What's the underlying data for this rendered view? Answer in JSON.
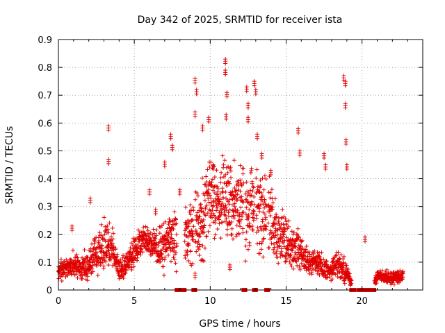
{
  "chart_data": {
    "type": "scatter",
    "title": "Day 342 of 2025, SRMTID for receiver ista",
    "xlabel": "GPS time / hours",
    "ylabel": "SRMTID / TECUs",
    "xlim": [
      0,
      24
    ],
    "ylim": [
      0,
      0.9
    ],
    "x_ticks": [
      0,
      5,
      10,
      15,
      20
    ],
    "x_tick_labels": [
      "0",
      "5",
      "10",
      "15",
      "20"
    ],
    "y_ticks": [
      0,
      0.1,
      0.2,
      0.3,
      0.4,
      0.5,
      0.6,
      0.7,
      0.8,
      0.9
    ],
    "y_tick_labels": [
      "0",
      "0.1",
      "0.2",
      "0.3",
      "0.4",
      "0.5",
      "0.6",
      "0.7",
      "0.8",
      "0.9"
    ],
    "grid": true,
    "marker": "plus",
    "color": "#e00000",
    "series": [
      {
        "name": "SRMTID",
        "profile_hours": [
          0,
          0.5,
          1,
          1.5,
          2,
          2.5,
          3,
          3.5,
          4,
          4.5,
          5,
          5.5,
          6,
          6.5,
          7,
          7.5,
          8,
          8.5,
          9,
          9.5,
          10,
          10.5,
          11,
          11.5,
          12,
          12.5,
          13,
          13.5,
          14,
          14.5,
          15,
          15.5,
          16,
          16.5,
          17,
          17.5,
          18,
          18.5,
          19,
          19.5,
          20,
          20.5,
          21,
          21.5,
          22,
          22.5
        ],
        "profile_median": [
          0.07,
          0.08,
          0.09,
          0.08,
          0.1,
          0.13,
          0.15,
          0.17,
          0.07,
          0.09,
          0.14,
          0.18,
          0.17,
          0.15,
          0.16,
          0.2,
          0.18,
          0.2,
          0.22,
          0.28,
          0.34,
          0.3,
          0.35,
          0.3,
          0.33,
          0.28,
          0.3,
          0.27,
          0.25,
          0.2,
          0.18,
          0.15,
          0.13,
          0.1,
          0.1,
          0.08,
          0.07,
          0.1,
          0.06,
          0,
          0,
          0,
          0.05,
          0.05,
          0.04,
          0.05
        ],
        "profile_spread": [
          0.03,
          0.03,
          0.04,
          0.03,
          0.06,
          0.06,
          0.08,
          0.06,
          0.04,
          0.04,
          0.05,
          0.04,
          0.04,
          0.05,
          0.08,
          0.1,
          0.12,
          0.08,
          0.12,
          0.14,
          0.12,
          0.1,
          0.13,
          0.12,
          0.14,
          0.13,
          0.14,
          0.13,
          0.12,
          0.09,
          0.07,
          0.06,
          0.06,
          0.04,
          0.04,
          0.04,
          0.03,
          0.05,
          0.03,
          0,
          0,
          0,
          0.02,
          0.02,
          0.02,
          0.02
        ],
        "peaks": [
          {
            "x": 0.9,
            "y": 0.23
          },
          {
            "x": 2.1,
            "y": 0.33
          },
          {
            "x": 3.3,
            "y": 0.59
          },
          {
            "x": 3.3,
            "y": 0.47
          },
          {
            "x": 6.0,
            "y": 0.36
          },
          {
            "x": 6.4,
            "y": 0.29
          },
          {
            "x": 7.0,
            "y": 0.46
          },
          {
            "x": 7.4,
            "y": 0.56
          },
          {
            "x": 7.5,
            "y": 0.52
          },
          {
            "x": 8.0,
            "y": 0.36
          },
          {
            "x": 9.0,
            "y": 0.76
          },
          {
            "x": 9.0,
            "y": 0.64
          },
          {
            "x": 9.1,
            "y": 0.72
          },
          {
            "x": 9.5,
            "y": 0.59
          },
          {
            "x": 9.9,
            "y": 0.62
          },
          {
            "x": 10.2,
            "y": 0.45
          },
          {
            "x": 11.0,
            "y": 0.83
          },
          {
            "x": 11.0,
            "y": 0.79
          },
          {
            "x": 11.05,
            "y": 0.63
          },
          {
            "x": 11.1,
            "y": 0.71
          },
          {
            "x": 11.3,
            "y": 0.09
          },
          {
            "x": 12.4,
            "y": 0.73
          },
          {
            "x": 12.5,
            "y": 0.67
          },
          {
            "x": 12.5,
            "y": 0.62
          },
          {
            "x": 12.9,
            "y": 0.75
          },
          {
            "x": 13.0,
            "y": 0.72
          },
          {
            "x": 13.1,
            "y": 0.56
          },
          {
            "x": 13.4,
            "y": 0.49
          },
          {
            "x": 14.0,
            "y": 0.43
          },
          {
            "x": 15.8,
            "y": 0.58
          },
          {
            "x": 15.9,
            "y": 0.5
          },
          {
            "x": 17.5,
            "y": 0.49
          },
          {
            "x": 17.6,
            "y": 0.45
          },
          {
            "x": 18.8,
            "y": 0.77
          },
          {
            "x": 18.9,
            "y": 0.75
          },
          {
            "x": 18.9,
            "y": 0.67
          },
          {
            "x": 18.95,
            "y": 0.54
          },
          {
            "x": 19.0,
            "y": 0.45
          },
          {
            "x": 20.2,
            "y": 0.19
          },
          {
            "x": 9.0,
            "y": 0.06
          }
        ],
        "zero_ranges": [
          [
            7.8,
            8.3
          ],
          [
            8.9,
            9.0
          ],
          [
            12.2,
            12.3
          ],
          [
            12.9,
            13.0
          ],
          [
            13.7,
            13.8
          ],
          [
            19.3,
            19.5
          ],
          [
            19.8,
            20.8
          ]
        ]
      }
    ]
  }
}
